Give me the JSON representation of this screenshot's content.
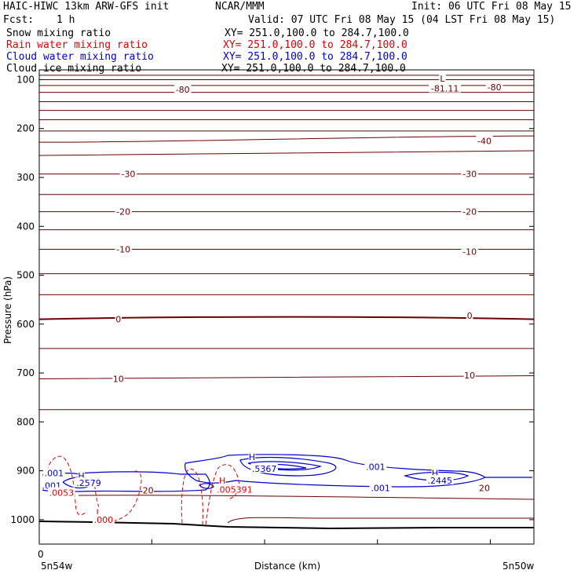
{
  "header": {
    "model": "HAIC-HIWC 13km ARW-GFS init",
    "org": "NCAR/MMM",
    "init": "Init: 06 UTC Fri 08 May 15",
    "fcst_label": "Fcst:",
    "fcst_value": "1 h",
    "valid": "Valid: 07 UTC Fri 08 May 15 (04 LST Fri 08 May 15)"
  },
  "legend": [
    {
      "name": "Snow mixing ratio",
      "xy": "XY= 251.0,100.0 to 284.7,100.0",
      "color": "#000000"
    },
    {
      "name": "Rain water mixing ratio",
      "xy": "XY= 251.0,100.0 to 284.7,100.0",
      "color": "#e00000"
    },
    {
      "name": "Cloud water mixing ratio",
      "xy": "XY= 251.0,100.0 to 284.7,100.0",
      "color": "#0000cc"
    },
    {
      "name": "Cloud ice mixing ratio",
      "xy": "XY= 251.0,100.0 to 284.7,100.0",
      "color": "#000000"
    }
  ],
  "chart_data": {
    "type": "line",
    "title": "",
    "xlabel": "Distance (km)",
    "ylabel": "Pressure (hPa)",
    "x_start_label": "0",
    "x_end_labels": [
      "5n54w",
      "5n50w"
    ],
    "y_ticks": [
      100,
      200,
      300,
      400,
      500,
      600,
      700,
      800,
      900,
      1000
    ],
    "ylim": [
      1050,
      80
    ],
    "temperature_contour_color": "#6b0000",
    "temperature_labels": [
      {
        "text": "-80",
        "x": 0.29,
        "p": 120
      },
      {
        "text": "-80",
        "x": 0.92,
        "p": 115
      },
      {
        "text": "-81.11",
        "x": 0.82,
        "p": 118
      },
      {
        "text": "L",
        "x": 0.815,
        "p": 98
      },
      {
        "text": "-40",
        "x": 0.9,
        "p": 225
      },
      {
        "text": "-30",
        "x": 0.18,
        "p": 293
      },
      {
        "text": "-30",
        "x": 0.87,
        "p": 293
      },
      {
        "text": "-20",
        "x": 0.17,
        "p": 370
      },
      {
        "text": "-20",
        "x": 0.87,
        "p": 370
      },
      {
        "text": "-10",
        "x": 0.17,
        "p": 447
      },
      {
        "text": "-10",
        "x": 0.87,
        "p": 452
      },
      {
        "text": "0",
        "x": 0.16,
        "p": 590
      },
      {
        "text": "0",
        "x": 0.87,
        "p": 583
      },
      {
        "text": "10",
        "x": 0.16,
        "p": 712
      },
      {
        "text": "10",
        "x": 0.87,
        "p": 705
      },
      {
        "text": "20",
        "x": 0.22,
        "p": 940
      },
      {
        "text": "20",
        "x": 0.9,
        "p": 935
      }
    ],
    "cloud_water_labels": [
      {
        "text": ".001",
        "x": 0.03,
        "p": 905
      },
      {
        "text": "H",
        "x": 0.085,
        "p": 910
      },
      {
        "text": ".2579",
        "x": 0.1,
        "p": 925
      },
      {
        "text": ".001",
        "x": 0.025,
        "p": 930
      },
      {
        "text": "H",
        "x": 0.43,
        "p": 872
      },
      {
        "text": ".5367",
        "x": 0.455,
        "p": 896
      },
      {
        "text": ".001",
        "x": 0.68,
        "p": 892
      },
      {
        "text": ".001",
        "x": 0.69,
        "p": 935
      },
      {
        "text": "H",
        "x": 0.8,
        "p": 905
      },
      {
        "text": ".2445",
        "x": 0.81,
        "p": 920
      }
    ],
    "rain_labels": [
      {
        "text": ".0053",
        "x": 0.045,
        "p": 945
      },
      {
        "text": "L",
        "x": 0.12,
        "p": 985
      },
      {
        "text": ".000",
        "x": 0.13,
        "p": 1000
      },
      {
        "text": "H",
        "x": 0.37,
        "p": 920
      },
      {
        "text": ".005391",
        "x": 0.395,
        "p": 938
      }
    ]
  }
}
